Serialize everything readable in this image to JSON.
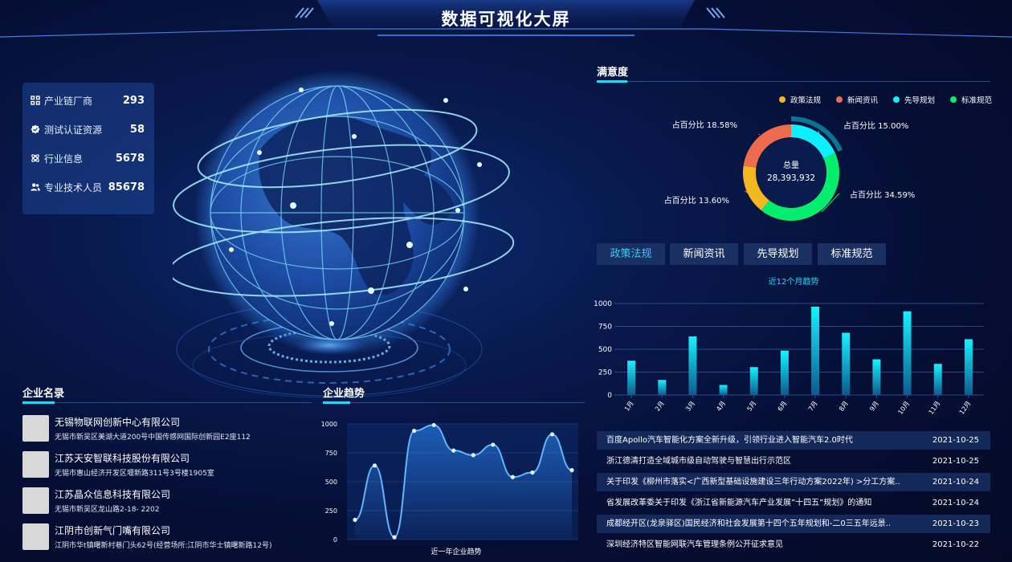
{
  "header": {
    "title": "数据可视化大屏"
  },
  "stats": [
    {
      "icon": "industry-chain-icon",
      "label": "产业链厂商",
      "value": "293"
    },
    {
      "icon": "certification-icon",
      "label": "测试认证资源",
      "value": "58"
    },
    {
      "icon": "industry-info-icon",
      "label": "行业信息",
      "value": "5678"
    },
    {
      "icon": "personnel-icon",
      "label": "专业技术人员",
      "value": "85678"
    }
  ],
  "companies": {
    "title": "企业名录",
    "items": [
      {
        "name": "无锡物联网创新中心有限公司",
        "address": "无锡市新吴区美湖大道200号中国传感网国际创新园E2座112"
      },
      {
        "name": "江苏天安智联科技股份有限公司",
        "address": "无锡市惠山经济开发区堰新路311号3号楼1905室"
      },
      {
        "name": "江苏晶众信息科技有限公司",
        "address": "无锡市新吴区龙山路2-18- 2202"
      },
      {
        "name": "江阴市创新气门嘴有限公司",
        "address": "江阴市华t镇曙新村巷门头62号(经营场所:江阴市华士镇曙新路12号)"
      }
    ]
  },
  "trend": {
    "title": "企业趋势",
    "chart_data": {
      "type": "line",
      "xlabel": "近一年企业趋势",
      "ylim": [
        0,
        1000
      ],
      "yticks": [
        "0",
        "250",
        "500",
        "750",
        "1000"
      ],
      "x": [
        1,
        2,
        3,
        4,
        5,
        6,
        7,
        8,
        9,
        10,
        11,
        12
      ],
      "values": [
        170,
        640,
        20,
        940,
        990,
        770,
        730,
        820,
        540,
        580,
        910,
        600
      ]
    }
  },
  "satisfaction": {
    "title": "满意度",
    "legend": [
      {
        "label": "政策法规",
        "color": "#f5b71f"
      },
      {
        "label": "新闻资讯",
        "color": "#ee6b4d"
      },
      {
        "label": "先导规划",
        "color": "#0af0ff"
      },
      {
        "label": "标准规范",
        "color": "#00ee6c"
      }
    ],
    "center_label": "总量",
    "center_value": "28,393,932",
    "chart_data": {
      "type": "pie",
      "slices": [
        {
          "label": "占百分比  15.00%",
          "value": 15.0,
          "color": "#0af0ff"
        },
        {
          "label": "占百分比  34.59%",
          "value": 34.59,
          "color": "#00ee6c"
        },
        {
          "label": "占百分比 13.60%",
          "value": 13.6,
          "color": "#f5b71f"
        },
        {
          "label": "占百分比  18.58%",
          "value": 18.58,
          "color": "#ee6b4d"
        }
      ]
    }
  },
  "tabs": [
    {
      "label": "政策法规",
      "active": true
    },
    {
      "label": "新闻资讯",
      "active": false
    },
    {
      "label": "先导规划",
      "active": false
    },
    {
      "label": "标准规范",
      "active": false
    }
  ],
  "monthly": {
    "chart_data": {
      "type": "bar",
      "title": "近12个月趋势",
      "categories": [
        "1月",
        "2月",
        "3月",
        "4月",
        "5月",
        "6月",
        "7月",
        "8月",
        "9月",
        "10月",
        "11月",
        "12月"
      ],
      "values": [
        375,
        165,
        640,
        110,
        305,
        485,
        965,
        680,
        390,
        915,
        340,
        610
      ],
      "ylim": [
        0,
        1000
      ],
      "yticks": [
        "0",
        "250",
        "500",
        "750",
        "1000"
      ]
    }
  },
  "news": [
    {
      "title": "百度Apollo汽车智能化方案全新升级，引领行业进入智能汽车2.0时代",
      "date": "2021-10-25"
    },
    {
      "title": "浙江德清打造全域城市级自动驾驶与智慧出行示范区",
      "date": "2021-10-25"
    },
    {
      "title": "关于印发《柳州市落实<广西新型基础设施建设三年行动方案2022年) >分工方案..",
      "date": "2021-10-24"
    },
    {
      "title": "省发展改革委关于印发《浙江省新能源汽车产业发展”十四五”规划》的通知",
      "date": "2021-10-24"
    },
    {
      "title": "成都经开区(龙泉驿区)国民经济和社会发展第十四个五年规划和-二0三五年远景..",
      "date": "2021-10-23"
    },
    {
      "title": "深圳经济特区智能网联汽车管理条例公开征求意见",
      "date": "2021-10-22"
    }
  ]
}
